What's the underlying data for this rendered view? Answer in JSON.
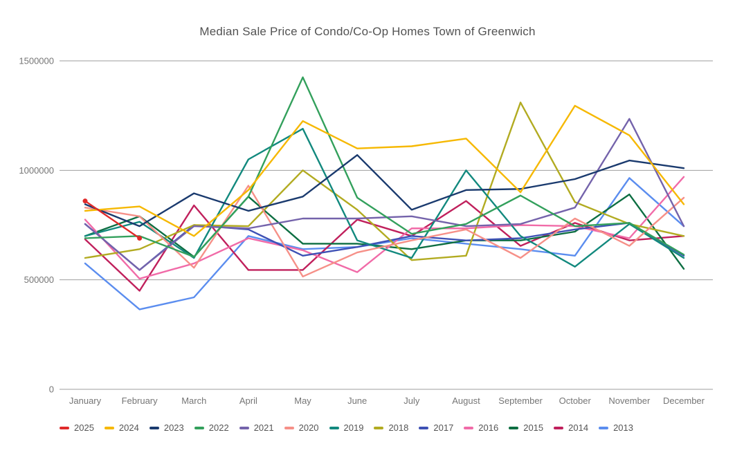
{
  "chart_data": {
    "type": "line",
    "title": "Median Sale Price of Condo/Co-Op Homes Town of Greenwich",
    "xlabel": "",
    "ylabel": "",
    "ylim": [
      0,
      1500000
    ],
    "yticks": [
      0,
      500000,
      1000000,
      1500000
    ],
    "grid": true,
    "legend_position": "bottom",
    "categories": [
      "January",
      "February",
      "March",
      "April",
      "May",
      "June",
      "July",
      "August",
      "September",
      "October",
      "November",
      "December"
    ],
    "series": [
      {
        "name": "2025",
        "color": "#e02a2a",
        "values": [
          860000,
          690000,
          null,
          null,
          null,
          null,
          null,
          null,
          null,
          null,
          null,
          null
        ]
      },
      {
        "name": "2024",
        "color": "#f6b801",
        "values": [
          815000,
          835000,
          700000,
          910000,
          1225000,
          1100000,
          1110000,
          1145000,
          900000,
          1295000,
          1160000,
          845000
        ]
      },
      {
        "name": "2023",
        "color": "#1a3a6e",
        "values": [
          845000,
          745000,
          895000,
          815000,
          880000,
          1070000,
          820000,
          910000,
          915000,
          960000,
          1045000,
          1010000
        ]
      },
      {
        "name": "2022",
        "color": "#33a05c",
        "values": [
          690000,
          700000,
          605000,
          880000,
          1425000,
          875000,
          710000,
          755000,
          885000,
          745000,
          760000,
          615000
        ]
      },
      {
        "name": "2021",
        "color": "#7463ab",
        "values": [
          755000,
          545000,
          745000,
          735000,
          780000,
          780000,
          790000,
          745000,
          755000,
          830000,
          1235000,
          745000
        ]
      },
      {
        "name": "2020",
        "color": "#f69088",
        "values": [
          830000,
          790000,
          555000,
          930000,
          515000,
          625000,
          680000,
          730000,
          600000,
          780000,
          655000,
          875000
        ]
      },
      {
        "name": "2019",
        "color": "#12897e",
        "values": [
          700000,
          765000,
          600000,
          1050000,
          1190000,
          680000,
          600000,
          1000000,
          700000,
          560000,
          755000,
          600000
        ]
      },
      {
        "name": "2018",
        "color": "#b2ab21",
        "values": [
          600000,
          640000,
          750000,
          745000,
          1000000,
          820000,
          590000,
          610000,
          1310000,
          855000,
          755000,
          700000
        ]
      },
      {
        "name": "2017",
        "color": "#3e51b5",
        "values": [
          755000,
          545000,
          750000,
          730000,
          610000,
          650000,
          700000,
          680000,
          690000,
          730000,
          760000,
          610000
        ]
      },
      {
        "name": "2016",
        "color": "#f16ba8",
        "values": [
          775000,
          505000,
          575000,
          690000,
          635000,
          535000,
          735000,
          735000,
          750000,
          745000,
          690000,
          970000
        ]
      },
      {
        "name": "2015",
        "color": "#0d6e42",
        "values": [
          700000,
          790000,
          605000,
          880000,
          665000,
          665000,
          640000,
          680000,
          680000,
          720000,
          890000,
          550000
        ]
      },
      {
        "name": "2014",
        "color": "#c0205c",
        "values": [
          685000,
          450000,
          840000,
          545000,
          545000,
          775000,
          700000,
          860000,
          655000,
          760000,
          680000,
          700000
        ]
      },
      {
        "name": "2013",
        "color": "#5b8def",
        "values": [
          575000,
          365000,
          420000,
          700000,
          640000,
          650000,
          690000,
          665000,
          640000,
          610000,
          965000,
          745000
        ]
      }
    ],
    "axis_colors": {
      "gridline": "#9e9e9e",
      "tick_label": "#757575"
    }
  }
}
